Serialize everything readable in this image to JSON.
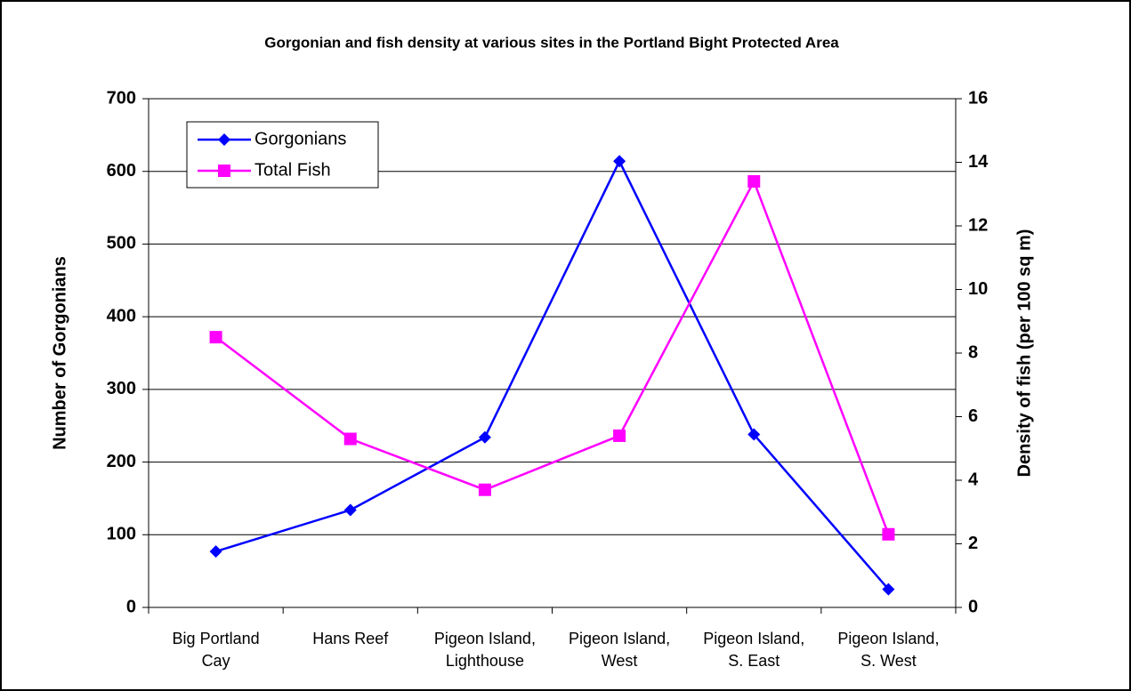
{
  "chart_data": {
    "type": "line",
    "title": "Gorgonian and fish density at various sites in the Portland Bight Protected Area",
    "categories": [
      [
        "Big Portland",
        "Cay"
      ],
      [
        "Hans Reef"
      ],
      [
        "Pigeon Island,",
        "Lighthouse"
      ],
      [
        "Pigeon Island,",
        "West"
      ],
      [
        "Pigeon Island,",
        "S. East"
      ],
      [
        "Pigeon Island,",
        "S. West"
      ]
    ],
    "ylabel": "Number of Gorgonians",
    "y2label": "Density of fish (per 100 sq m)",
    "ylim": [
      0,
      700
    ],
    "yticks": [
      0,
      100,
      200,
      300,
      400,
      500,
      600,
      700
    ],
    "y2lim": [
      0,
      16
    ],
    "y2ticks": [
      0,
      2,
      4,
      6,
      8,
      10,
      12,
      14,
      16
    ],
    "grid": true,
    "legend": "upper left",
    "series": [
      {
        "name": "Gorgonians",
        "color": "#0000ff",
        "marker": "diamond",
        "values": [
          77,
          134,
          234,
          614,
          238,
          25
        ]
      },
      {
        "name": "Total Fish",
        "color": "#ff00ff",
        "marker": "square",
        "axis": "y2",
        "values": [
          8.5,
          5.3,
          3.7,
          5.4,
          13.4,
          2.3
        ]
      }
    ]
  }
}
